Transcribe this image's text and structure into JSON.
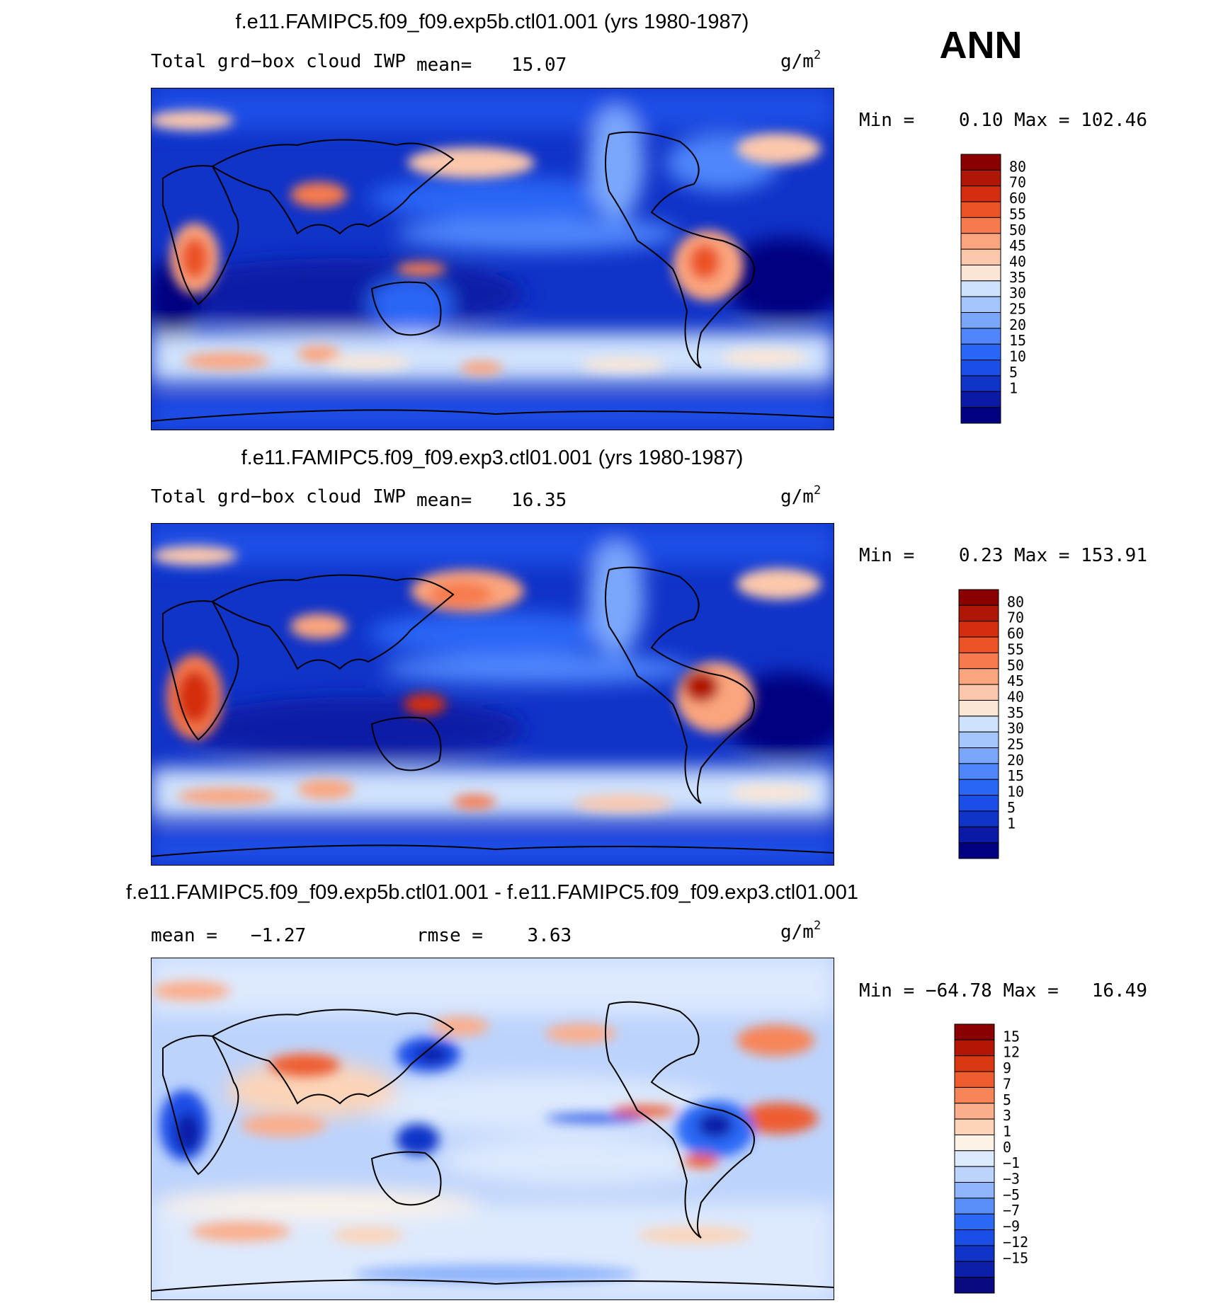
{
  "season": "ANN",
  "units_label": "g/m",
  "units_sup": "2",
  "colors": {
    "abs_scale": [
      "#000080",
      "#0a1aa6",
      "#1033c8",
      "#1a4ee6",
      "#2a66f6",
      "#4f86fb",
      "#7aa7fc",
      "#a5c6fc",
      "#cfe2fd",
      "#fbe6d6",
      "#fcc8ac",
      "#fba57e",
      "#f77a4e",
      "#eb5226",
      "#d42d10",
      "#b01606",
      "#8a0000"
    ],
    "diff_scale": [
      "#0a0a80",
      "#0b1fa8",
      "#1034c8",
      "#1a4ee6",
      "#2b69f5",
      "#5a8ff9",
      "#8fb4fb",
      "#bcd3fc",
      "#dde9fd",
      "#fdf2e6",
      "#fcd4b8",
      "#fbae8c",
      "#f78558",
      "#ee5d30",
      "#d83812",
      "#b41606",
      "#8a0000"
    ]
  },
  "chart_data": [
    {
      "type": "heatmap",
      "title": "f.e11.FAMIPC5.f09_f09.exp5b.ctl01.001 (yrs 1980-1987)",
      "subtitle_left": "Total grd−box cloud IWP",
      "mean_label": "mean=",
      "mean_value": "15.07",
      "stats_text": "Min =    0.10 Max = 102.46",
      "colorbar_levels": [
        "80",
        "70",
        "60",
        "55",
        "50",
        "45",
        "40",
        "35",
        "30",
        "25",
        "20",
        "15",
        "10",
        "5",
        "1"
      ]
    },
    {
      "type": "heatmap",
      "title": "f.e11.FAMIPC5.f09_f09.exp3.ctl01.001 (yrs 1980-1987)",
      "subtitle_left": "Total grd−box cloud IWP",
      "mean_label": "mean=",
      "mean_value": "16.35",
      "stats_text": "Min =    0.23 Max = 153.91",
      "colorbar_levels": [
        "80",
        "70",
        "60",
        "55",
        "50",
        "45",
        "40",
        "35",
        "30",
        "25",
        "20",
        "15",
        "10",
        "5",
        "1"
      ]
    },
    {
      "type": "heatmap",
      "title": "f.e11.FAMIPC5.f09_f09.exp5b.ctl01.001 - f.e11.FAMIPC5.f09_f09.exp3.ctl01.001",
      "mean_text": "mean =   −1.27",
      "rmse_text": "rmse =    3.63",
      "stats_text": "Min = −64.78 Max =   16.49",
      "colorbar_levels": [
        "15",
        "12",
        "9",
        "7",
        "5",
        "3",
        "1",
        "0",
        "−1",
        "−3",
        "−5",
        "−7",
        "−9",
        "−12",
        "−15"
      ]
    }
  ]
}
